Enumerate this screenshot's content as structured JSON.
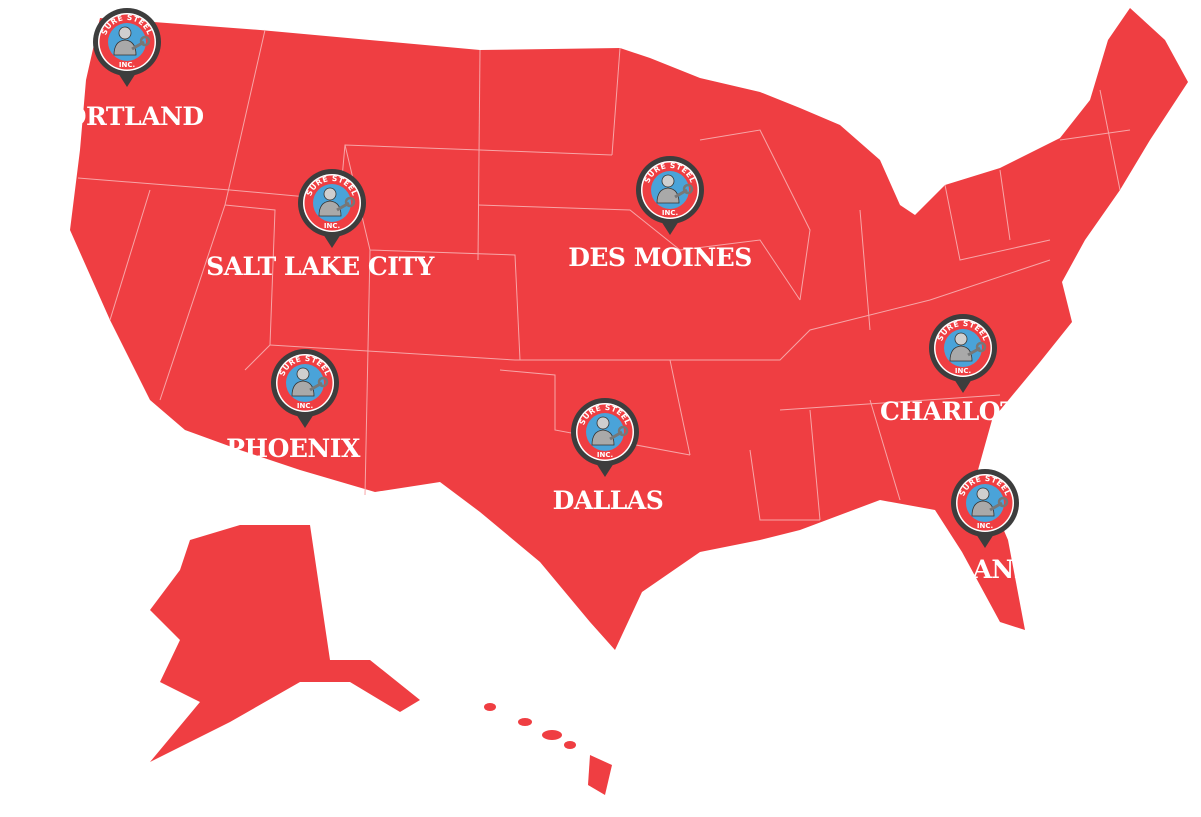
{
  "map": {
    "land_color": "#EF3E42",
    "border_color": "#F7A5A7",
    "pin_color": "#3D3D3D",
    "logo_blue": "#4AA3D9",
    "logo_text_top": "SURE STEEL",
    "logo_text_bottom": "INC.",
    "logo_icon": "wrench-worker-icon",
    "locations": [
      {
        "name": "PORTLAND"
      },
      {
        "name": "SALT LAKE CITY"
      },
      {
        "name": "DES MOINES"
      },
      {
        "name": "PHOENIX"
      },
      {
        "name": "DALLAS"
      },
      {
        "name": "CHARLOTTE"
      },
      {
        "name": "ORLANDO"
      }
    ]
  }
}
